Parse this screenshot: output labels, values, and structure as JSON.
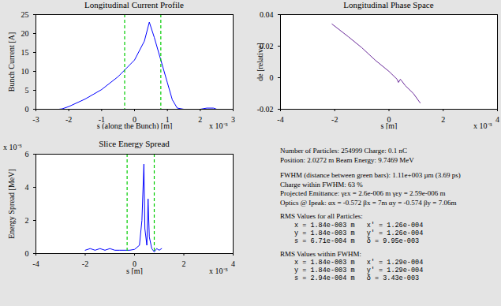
{
  "chart_data": [
    {
      "type": "line",
      "title": "Longitudinal Current Profile",
      "xlabel": "s (along the Bunch) [m]",
      "ylabel": "Bunch Current [A]",
      "xlabel_multiplier": "x 10⁻³",
      "x": [
        -2.3,
        -2.2,
        -2.0,
        -1.5,
        -1.0,
        -0.5,
        0.0,
        0.3,
        0.45,
        0.6,
        0.8,
        1.0,
        1.15,
        1.3,
        1.5,
        2.0,
        2.2,
        2.4,
        2.5
      ],
      "values": [
        0,
        0.1,
        0.7,
        2.7,
        5.2,
        8.6,
        13,
        18,
        23,
        19,
        13,
        7,
        2.5,
        0.3,
        0,
        0,
        0.3,
        0.3,
        0
      ],
      "color": "#0000ff",
      "vlines": [
        -0.3,
        0.8
      ],
      "vline_color": "#00cc00",
      "vline_style": "dashed",
      "xlim": [
        -3,
        3
      ],
      "xticks": [
        -3,
        -2,
        -1,
        0,
        1,
        2,
        3
      ],
      "ylim": [
        0,
        25
      ],
      "yticks": [
        0,
        5,
        10,
        15,
        20,
        25
      ],
      "grid": false
    },
    {
      "type": "line",
      "title": "Longitudinal Phase Space",
      "xlabel": "s [m]",
      "ylabel": "de [relative]",
      "xlabel_multiplier": "x 10⁻³",
      "x": [
        -2.1,
        -1.5,
        -1.0,
        -0.5,
        0.0,
        0.3,
        0.35,
        0.42,
        0.47,
        0.6,
        0.9,
        1.15
      ],
      "values": [
        0.034,
        0.026,
        0.019,
        0.011,
        0.004,
        -0.001,
        -0.003,
        -0.001,
        -0.002,
        -0.005,
        -0.01,
        -0.016
      ],
      "color": "#6a2a9a",
      "xlim": [
        -4,
        4
      ],
      "xticks": [
        -4,
        -2,
        0,
        2,
        4
      ],
      "ylim": [
        -0.02,
        0.04
      ],
      "yticks": [
        -0.02,
        0,
        0.02,
        0.04
      ],
      "grid": false
    },
    {
      "type": "line",
      "title": "Slice Energy Spread",
      "xlabel": "s [m]",
      "ylabel": "Energy Spread [MeV]",
      "xlabel_multiplier": "x 10⁻³",
      "ylabel_multiplier": "x 10⁻³",
      "x": [
        -2.0,
        -1.8,
        -1.6,
        -1.4,
        -1.2,
        -1.0,
        -0.8,
        -0.6,
        -0.4,
        -0.2,
        0.0,
        0.2,
        0.3,
        0.38,
        0.42,
        0.5,
        0.55,
        0.6,
        0.7,
        0.8,
        0.9,
        1.0,
        1.1
      ],
      "values": [
        0.2,
        0.3,
        0.2,
        0.3,
        0.2,
        0.3,
        0.2,
        0.2,
        0.2,
        0.2,
        0.25,
        0.5,
        2,
        5.4,
        1.5,
        0.5,
        3.3,
        1,
        0.3,
        0.1,
        0.3,
        0.2,
        0.3
      ],
      "color": "#0000ff",
      "vlines": [
        -0.3,
        0.8
      ],
      "vline_color": "#00cc00",
      "vline_style": "dashed",
      "xlim": [
        -4,
        4
      ],
      "xticks": [
        -4,
        -2,
        0,
        2,
        4
      ],
      "ylim": [
        0,
        6
      ],
      "yticks": [
        0,
        2,
        4,
        6
      ],
      "grid": false
    }
  ],
  "info_panel": {
    "groups": [
      [
        "Number of Particles: 254999  Charge: 0.1 nC",
        "Position: 2.0272 m   Beam Energy: 9.7469 MeV"
      ],
      [
        "FWHM (distance between green bars): 1.11e+003 µm (3.69 ps)",
        "Charge within FWHM: 63 %",
        "Projected Emittance: γεx = 2.6e-006 m  γεy = 2.59e-006 m",
        "Optics @ Ipeak: αx = -0.572  βx = 7m  αy = -0.574  βy = 7.06m"
      ],
      [
        "RMS Values for all Particles:",
        "x = 1.84e-003 m   x' = 1.26e-004",
        "y = 1.84e-003 m   y' = 1.26e-004",
        "s = 6.71e-004 m   δ = 9.95e-003"
      ],
      [
        "RMS Values within FWHM:",
        "x = 1.84e-003 m   x' = 1.29e-004",
        "y = 1.84e-003 m   y' = 1.29e-004",
        "s = 2.94e-004 m   δ = 3.43e-003"
      ]
    ]
  }
}
